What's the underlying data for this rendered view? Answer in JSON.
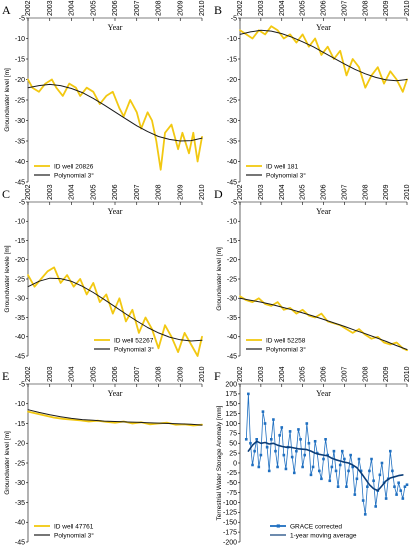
{
  "colors": {
    "series_yellow": "#F2C811",
    "poly_black": "#1a1a1a",
    "grace_blue": "#1F6FC0",
    "grace_dark": "#0B3D78"
  },
  "chart_data": [
    {
      "panel": "A",
      "type": "line",
      "xlabel": "Year",
      "ylabel": "Groundwater level [m]",
      "x_ticks": [
        "2002",
        "2003",
        "2004",
        "2005",
        "2006",
        "2007",
        "2008",
        "2009",
        "2010"
      ],
      "ylim": [
        -45,
        -5
      ],
      "y_ticks": [
        -5,
        -10,
        -15,
        -20,
        -25,
        -30,
        -35,
        -40,
        -45
      ],
      "legend_position": "bottom-left",
      "series": [
        {
          "name": "ID well 20826",
          "color": "#F2C811",
          "x": [
            2002.0,
            2002.2,
            2002.5,
            2002.8,
            2003.1,
            2003.3,
            2003.6,
            2003.9,
            2004.2,
            2004.4,
            2004.7,
            2005.0,
            2005.3,
            2005.6,
            2005.9,
            2006.2,
            2006.4,
            2006.7,
            2007.0,
            2007.2,
            2007.5,
            2007.7,
            2007.9,
            2008.1,
            2008.3,
            2008.6,
            2008.9,
            2009.1,
            2009.4,
            2009.6,
            2009.8,
            2010.0
          ],
          "y": [
            -20,
            -22,
            -23,
            -21,
            -20,
            -22,
            -24,
            -21,
            -22,
            -24,
            -22,
            -23,
            -26,
            -24,
            -23,
            -27,
            -29,
            -25,
            -28,
            -32,
            -28,
            -30,
            -35,
            -42,
            -33,
            -31,
            -37,
            -33,
            -38,
            -33,
            -40,
            -34
          ]
        },
        {
          "name": "Polynomial 3°",
          "color": "#1a1a1a",
          "x": [
            2002.0,
            2002.5,
            2003.0,
            2003.5,
            2004.0,
            2004.5,
            2005.0,
            2005.5,
            2006.0,
            2006.5,
            2007.0,
            2007.5,
            2008.0,
            2008.5,
            2009.0,
            2009.5,
            2010.0
          ],
          "y": [
            -22,
            -21.5,
            -21.2,
            -21.5,
            -22.2,
            -23.2,
            -24.6,
            -26.2,
            -27.9,
            -29.6,
            -31.3,
            -32.7,
            -33.9,
            -34.6,
            -35,
            -34.9,
            -34.3
          ]
        }
      ]
    },
    {
      "panel": "B",
      "type": "line",
      "xlabel": "Year",
      "ylabel": "",
      "x_ticks": [
        "2002",
        "2003",
        "2004",
        "2005",
        "2006",
        "2007",
        "2008",
        "2009",
        "2010"
      ],
      "ylim": [
        -45,
        -5
      ],
      "y_ticks": [
        -5,
        -10,
        -15,
        -20,
        -25,
        -30,
        -35,
        -40,
        -45
      ],
      "legend_position": "bottom-left",
      "series": [
        {
          "name": "ID well 181",
          "color": "#F2C811",
          "x": [
            2002.0,
            2002.3,
            2002.6,
            2002.9,
            2003.2,
            2003.5,
            2003.8,
            2004.1,
            2004.4,
            2004.7,
            2005.0,
            2005.3,
            2005.6,
            2005.9,
            2006.2,
            2006.5,
            2006.8,
            2007.1,
            2007.4,
            2007.7,
            2008.0,
            2008.3,
            2008.6,
            2008.9,
            2009.2,
            2009.5,
            2009.8,
            2010.0
          ],
          "y": [
            -8,
            -9,
            -10,
            -8,
            -9,
            -7,
            -8,
            -10,
            -9,
            -11,
            -9,
            -12,
            -10,
            -14,
            -12,
            -15,
            -13,
            -19,
            -15,
            -17,
            -22,
            -19,
            -17,
            -21,
            -18,
            -20,
            -23,
            -20
          ]
        },
        {
          "name": "Polynomial 3°",
          "color": "#1a1a1a",
          "x": [
            2002.0,
            2002.5,
            2003.0,
            2003.5,
            2004.0,
            2004.5,
            2005.0,
            2005.5,
            2006.0,
            2006.5,
            2007.0,
            2007.5,
            2008.0,
            2008.5,
            2009.0,
            2009.5,
            2010.0
          ],
          "y": [
            -9,
            -8.4,
            -8,
            -8.2,
            -8.8,
            -9.7,
            -10.8,
            -12,
            -13.4,
            -14.8,
            -16.2,
            -17.5,
            -18.6,
            -19.5,
            -20.1,
            -20.3,
            -20
          ]
        }
      ]
    },
    {
      "panel": "C",
      "type": "line",
      "xlabel": "Year",
      "ylabel": "Groundwater levele [m]",
      "x_ticks": [
        "2002",
        "2003",
        "2004",
        "2005",
        "2006",
        "2007",
        "2008",
        "2009",
        "2010"
      ],
      "ylim": [
        -45,
        -5
      ],
      "y_ticks": [
        -5,
        -10,
        -15,
        -20,
        -25,
        -30,
        -35,
        -40,
        -45
      ],
      "legend_position": "bottom-right",
      "series": [
        {
          "name": "ID well 52267",
          "color": "#F2C811",
          "x": [
            2002.0,
            2002.3,
            2002.6,
            2002.9,
            2003.2,
            2003.5,
            2003.8,
            2004.1,
            2004.4,
            2004.7,
            2005.0,
            2005.3,
            2005.6,
            2005.9,
            2006.2,
            2006.5,
            2006.8,
            2007.1,
            2007.4,
            2007.7,
            2008.0,
            2008.3,
            2008.6,
            2008.9,
            2009.2,
            2009.5,
            2009.8,
            2010.0
          ],
          "y": [
            -24,
            -27,
            -25,
            -23,
            -22,
            -26,
            -24,
            -27,
            -25,
            -29,
            -26,
            -31,
            -29,
            -34,
            -30,
            -36,
            -33,
            -39,
            -35,
            -38,
            -43,
            -37,
            -40,
            -44,
            -39,
            -42,
            -45,
            -40
          ]
        },
        {
          "name": "Polynomial 3°",
          "color": "#1a1a1a",
          "x": [
            2002.0,
            2002.5,
            2003.0,
            2003.5,
            2004.0,
            2004.5,
            2005.0,
            2005.5,
            2006.0,
            2006.5,
            2007.0,
            2007.5,
            2008.0,
            2008.5,
            2009.0,
            2009.5,
            2010.0
          ],
          "y": [
            -27,
            -25.6,
            -24.8,
            -24.9,
            -25.6,
            -26.9,
            -28.5,
            -30.3,
            -32.2,
            -34.1,
            -35.9,
            -37.6,
            -39,
            -40.1,
            -40.8,
            -41.1,
            -40.9
          ]
        }
      ]
    },
    {
      "panel": "D",
      "type": "line",
      "xlabel": "Year",
      "ylabel": "Groundwater level [m]",
      "x_ticks": [
        "2002",
        "2003",
        "2004",
        "2005",
        "2006",
        "2007",
        "2008",
        "2009",
        "2010"
      ],
      "ylim": [
        -45,
        -5
      ],
      "y_ticks": [
        -5,
        -10,
        -15,
        -20,
        -25,
        -30,
        -35,
        -40,
        -45
      ],
      "legend_position": "bottom-left",
      "series": [
        {
          "name": "ID well 52258",
          "color": "#F2C811",
          "x": [
            2002.0,
            2002.3,
            2002.6,
            2002.9,
            2003.2,
            2003.5,
            2003.8,
            2004.1,
            2004.4,
            2004.7,
            2005.0,
            2005.3,
            2005.6,
            2005.9,
            2006.2,
            2006.5,
            2006.8,
            2007.1,
            2007.4,
            2007.7,
            2008.0,
            2008.3,
            2008.6,
            2008.9,
            2009.2,
            2009.5,
            2009.8,
            2010.0
          ],
          "y": [
            -29.5,
            -30.5,
            -31,
            -30,
            -31.5,
            -32,
            -31,
            -33,
            -32.5,
            -34,
            -33,
            -34.5,
            -35,
            -34,
            -36,
            -36.5,
            -37,
            -38,
            -39,
            -38,
            -39.5,
            -40.5,
            -40,
            -41.5,
            -42,
            -41.5,
            -43,
            -43.5
          ]
        },
        {
          "name": "Polynomial 3°",
          "color": "#1a1a1a",
          "x": [
            2002.0,
            2002.5,
            2003.0,
            2003.5,
            2004.0,
            2004.5,
            2005.0,
            2005.5,
            2006.0,
            2006.5,
            2007.0,
            2007.5,
            2008.0,
            2008.5,
            2009.0,
            2009.5,
            2010.0
          ],
          "y": [
            -30,
            -30.5,
            -31,
            -31.6,
            -32.3,
            -33,
            -33.8,
            -34.6,
            -35.5,
            -36.4,
            -37.3,
            -38.3,
            -39.2,
            -40.2,
            -41.2,
            -42.3,
            -43.3
          ]
        }
      ]
    },
    {
      "panel": "E",
      "type": "line",
      "xlabel": "Year",
      "ylabel": "Groundwater level [m]",
      "x_ticks": [
        "2002",
        "2003",
        "2004",
        "2005",
        "2006",
        "2007",
        "2008",
        "2009",
        "2010"
      ],
      "ylim": [
        -45,
        -5
      ],
      "y_ticks": [
        -5,
        -10,
        -15,
        -20,
        -25,
        -30,
        -35,
        -40,
        -45
      ],
      "legend_position": "bottom-left",
      "series": [
        {
          "name": "ID well 47761",
          "color": "#F2C811",
          "x": [
            2002.0,
            2002.4,
            2002.8,
            2003.2,
            2003.6,
            2004.0,
            2004.4,
            2004.8,
            2005.2,
            2005.6,
            2006.0,
            2006.4,
            2006.8,
            2007.2,
            2007.6,
            2008.0,
            2008.4,
            2008.8,
            2009.2,
            2009.6,
            2010.0
          ],
          "y": [
            -12,
            -12.5,
            -13,
            -13.5,
            -13.8,
            -14,
            -14.2,
            -14.5,
            -14.3,
            -14.6,
            -14.8,
            -14.5,
            -15,
            -14.7,
            -15.2,
            -15,
            -14.8,
            -15.3,
            -15.2,
            -15.5,
            -15.3
          ]
        },
        {
          "name": "Polynomial 3°",
          "color": "#1a1a1a",
          "x": [
            2002.0,
            2002.5,
            2003.0,
            2003.5,
            2004.0,
            2004.5,
            2005.0,
            2005.5,
            2006.0,
            2006.5,
            2007.0,
            2007.5,
            2008.0,
            2008.5,
            2009.0,
            2009.5,
            2010.0
          ],
          "y": [
            -11.5,
            -12.2,
            -12.8,
            -13.3,
            -13.7,
            -14,
            -14.2,
            -14.4,
            -14.5,
            -14.6,
            -14.7,
            -14.8,
            -14.9,
            -15,
            -15.1,
            -15.2,
            -15.4
          ]
        }
      ]
    },
    {
      "panel": "F",
      "type": "line",
      "xlabel": "Year",
      "ylabel": "Terrestrial Water Storage Anomaly [mm]",
      "x_ticks": [
        "2002",
        "2003",
        "2004",
        "2005",
        "2006",
        "2007",
        "2008",
        "2009",
        "2010"
      ],
      "ylim": [
        -200,
        200
      ],
      "y_ticks": [
        200,
        175,
        150,
        125,
        100,
        75,
        50,
        25,
        0,
        -25,
        -50,
        -75,
        -100,
        -125,
        -150,
        -175,
        -200
      ],
      "legend_position": "bottom-center",
      "series": [
        {
          "name": "GRACE corrected",
          "color": "#1F6FC0",
          "markers": true,
          "x": [
            2002.3,
            2002.4,
            2002.5,
            2002.6,
            2002.7,
            2002.8,
            2002.9,
            2003.0,
            2003.1,
            2003.2,
            2003.3,
            2003.4,
            2003.5,
            2003.6,
            2003.7,
            2003.8,
            2003.9,
            2004.0,
            2004.1,
            2004.2,
            2004.3,
            2004.4,
            2004.5,
            2004.6,
            2004.7,
            2004.8,
            2004.9,
            2005.0,
            2005.1,
            2005.2,
            2005.3,
            2005.4,
            2005.5,
            2005.6,
            2005.7,
            2005.8,
            2005.9,
            2006.0,
            2006.1,
            2006.2,
            2006.3,
            2006.4,
            2006.5,
            2006.6,
            2006.7,
            2006.8,
            2006.9,
            2007.0,
            2007.1,
            2007.2,
            2007.3,
            2007.4,
            2007.5,
            2007.6,
            2007.7,
            2007.8,
            2007.9,
            2008.0,
            2008.1,
            2008.2,
            2008.3,
            2008.4,
            2008.5,
            2008.6,
            2008.7,
            2008.8,
            2008.9,
            2009.0,
            2009.1,
            2009.2,
            2009.3,
            2009.4,
            2009.5,
            2009.6,
            2009.7,
            2009.8,
            2009.9,
            2010.0
          ],
          "y": [
            60,
            175,
            50,
            -5,
            30,
            60,
            -10,
            20,
            130,
            100,
            40,
            -20,
            60,
            110,
            30,
            -10,
            70,
            90,
            20,
            -15,
            40,
            80,
            15,
            -25,
            30,
            85,
            60,
            -10,
            20,
            100,
            50,
            -30,
            -10,
            55,
            25,
            -20,
            -40,
            10,
            60,
            20,
            -45,
            -10,
            30,
            -20,
            -60,
            -5,
            30,
            10,
            -60,
            -20,
            20,
            -10,
            -80,
            -40,
            10,
            -20,
            -95,
            -130,
            -60,
            -20,
            10,
            -45,
            -110,
            -70,
            -30,
            0,
            -50,
            -90,
            -40,
            30,
            -20,
            -60,
            -80,
            -50,
            -70,
            -90,
            -60,
            -55
          ]
        },
        {
          "name": "1-year moving average",
          "color": "#0B3D78",
          "x": [
            2002.4,
            2002.6,
            2002.8,
            2003.0,
            2003.2,
            2003.4,
            2003.6,
            2003.8,
            2004.0,
            2004.2,
            2004.4,
            2004.6,
            2004.8,
            2005.0,
            2005.2,
            2005.4,
            2005.6,
            2005.8,
            2006.0,
            2006.2,
            2006.4,
            2006.6,
            2006.8,
            2007.0,
            2007.2,
            2007.4,
            2007.6,
            2007.8,
            2008.0,
            2008.2,
            2008.4,
            2008.6,
            2008.8,
            2009.0,
            2009.2,
            2009.4,
            2009.6,
            2009.8
          ],
          "y": [
            30,
            45,
            55,
            50,
            52,
            48,
            50,
            45,
            42,
            40,
            40,
            38,
            36,
            35,
            34,
            30,
            25,
            22,
            20,
            18,
            12,
            8,
            5,
            2,
            0,
            -5,
            -12,
            -25,
            -40,
            -55,
            -65,
            -70,
            -58,
            -45,
            -38,
            -35,
            -32,
            -30
          ]
        }
      ]
    }
  ]
}
